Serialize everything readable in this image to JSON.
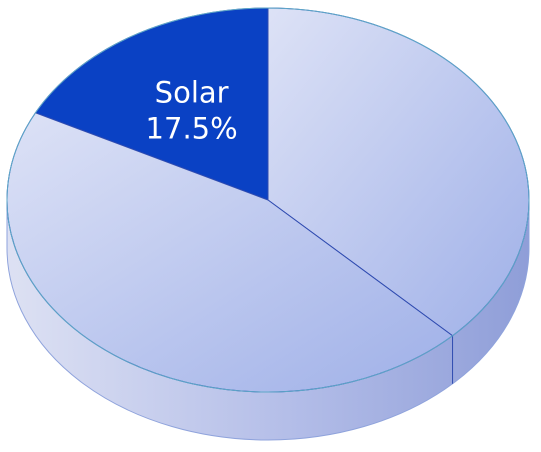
{
  "chart_data": {
    "type": "pie",
    "style": "3d",
    "slices": [
      {
        "label": "Solar",
        "value": 17.5,
        "value_label": "17.5%",
        "color": "#0a41c4",
        "labeled": true
      },
      {
        "label": "",
        "value": 37.5,
        "value_label": "",
        "color": "#b6c3ec",
        "labeled": false
      },
      {
        "label": "",
        "value": 45.0,
        "value_label": "",
        "color": "#b9c5ee",
        "labeled": false
      }
    ],
    "legend": "none",
    "title": ""
  },
  "colors": {
    "highlight": "#0a41c4",
    "slice_light_start": "#dde2f6",
    "slice_light_end": "#9fb0e8",
    "side_light": "#dde1f3",
    "side_dark": "#8f9ed8",
    "edge": "#2f4bb0"
  }
}
